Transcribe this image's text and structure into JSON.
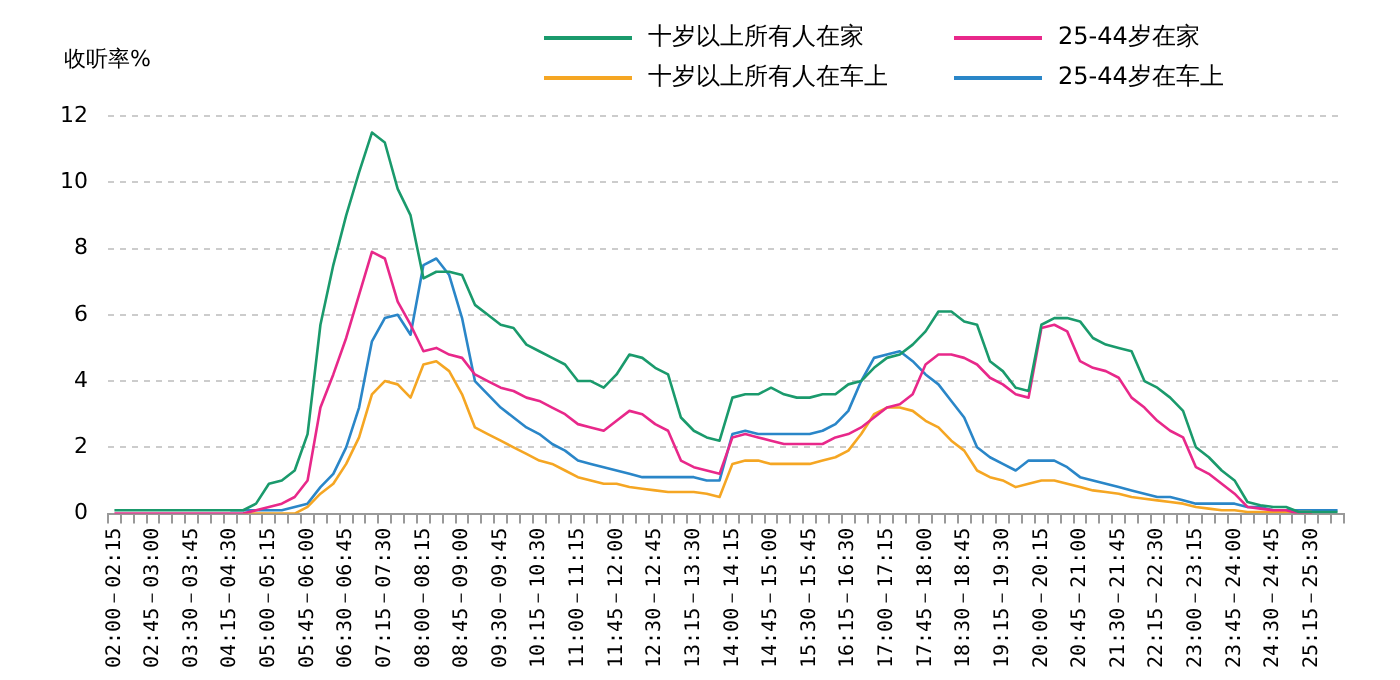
{
  "chart_data": {
    "type": "line",
    "ylabel": "收听率%",
    "legend": "top",
    "grid": "y",
    "ylim": [
      0,
      12
    ],
    "yticks": [
      0,
      2,
      4,
      6,
      8,
      10,
      12
    ],
    "categories": [
      "02:00－02:15",
      null,
      null,
      "02:45－03:00",
      null,
      null,
      "03:30－03:45",
      null,
      null,
      "04:15－04:30",
      null,
      null,
      "05:00－05:15",
      null,
      null,
      "05:45－06:00",
      null,
      null,
      "06:30－06:45",
      null,
      null,
      "07:15－07:30",
      null,
      null,
      "08:00－08:15",
      null,
      null,
      "08:45－09:00",
      null,
      null,
      "09:30－09:45",
      null,
      null,
      "10:15－10:30",
      null,
      null,
      "11:00－11:15",
      null,
      null,
      "11:45－12:00",
      null,
      null,
      "12:30－12:45",
      null,
      null,
      "13:15－13:30",
      null,
      null,
      "14:00－14:15",
      null,
      null,
      "14:45－15:00",
      null,
      null,
      "15:30－15:45",
      null,
      null,
      "16:15－16:30",
      null,
      null,
      "17:00－17:15",
      null,
      null,
      "17:45－18:00",
      null,
      null,
      "18:30－18:45",
      null,
      null,
      "19:15－19:30",
      null,
      null,
      "20:00－20:15",
      null,
      null,
      "20:45－21:00",
      null,
      null,
      "21:30－21:45",
      null,
      null,
      "22:15－22:30",
      null,
      null,
      "23:00－23:15",
      null,
      null,
      "23:45－24:00",
      null,
      null,
      "24:30－24:45",
      null,
      null,
      "25:15－25:30",
      null,
      null
    ],
    "series": [
      {
        "name": "十岁以上所有人在家",
        "color": "#1a9a6c",
        "values": [
          0.1,
          0.1,
          0.1,
          0.1,
          0.1,
          0.1,
          0.1,
          0.1,
          0.1,
          0.1,
          0.1,
          0.3,
          0.9,
          1.0,
          1.3,
          2.4,
          5.7,
          7.5,
          9.0,
          10.3,
          11.5,
          11.2,
          9.8,
          9.0,
          7.1,
          7.3,
          7.3,
          7.2,
          6.3,
          6.0,
          5.7,
          5.6,
          5.1,
          4.9,
          4.7,
          4.5,
          4.0,
          4.0,
          3.8,
          4.2,
          4.8,
          4.7,
          4.4,
          4.2,
          2.9,
          2.5,
          2.3,
          2.2,
          3.5,
          3.6,
          3.6,
          3.8,
          3.6,
          3.5,
          3.5,
          3.6,
          3.6,
          3.9,
          4.0,
          4.4,
          4.7,
          4.8,
          5.1,
          5.5,
          6.1,
          6.1,
          5.8,
          5.7,
          4.6,
          4.3,
          3.8,
          3.7,
          5.7,
          5.9,
          5.9,
          5.8,
          5.3,
          5.1,
          5.0,
          4.9,
          4.0,
          3.8,
          3.5,
          3.1,
          2.0,
          1.7,
          1.3,
          1.0,
          0.35,
          0.25,
          0.2,
          0.2,
          0.05,
          0.05,
          0.05,
          0.05
        ]
      },
      {
        "name": "25-44岁在家",
        "color": "#e8288a",
        "values": [
          0,
          0,
          0,
          0,
          0,
          0,
          0,
          0,
          0,
          0,
          0,
          0.1,
          0.2,
          0.3,
          0.5,
          1.0,
          3.2,
          4.2,
          5.3,
          6.6,
          7.9,
          7.7,
          6.4,
          5.7,
          4.9,
          5.0,
          4.8,
          4.7,
          4.2,
          4.0,
          3.8,
          3.7,
          3.5,
          3.4,
          3.2,
          3.0,
          2.7,
          2.6,
          2.5,
          2.8,
          3.1,
          3.0,
          2.7,
          2.5,
          1.6,
          1.4,
          1.3,
          1.2,
          2.3,
          2.4,
          2.3,
          2.2,
          2.1,
          2.1,
          2.1,
          2.1,
          2.3,
          2.4,
          2.6,
          2.9,
          3.2,
          3.3,
          3.6,
          4.5,
          4.8,
          4.8,
          4.7,
          4.5,
          4.1,
          3.9,
          3.6,
          3.5,
          5.6,
          5.7,
          5.5,
          4.6,
          4.4,
          4.3,
          4.1,
          3.5,
          3.2,
          2.8,
          2.5,
          2.3,
          1.4,
          1.2,
          0.9,
          0.6,
          0.2,
          0.15,
          0.1,
          0.1,
          0,
          0,
          null,
          null
        ]
      },
      {
        "name": "十岁以上所有人在车上",
        "color": "#f5a623",
        "values": [
          null,
          null,
          null,
          null,
          null,
          null,
          null,
          null,
          null,
          null,
          0,
          0,
          0,
          0,
          0,
          0.2,
          0.6,
          0.9,
          1.5,
          2.3,
          3.6,
          4.0,
          3.9,
          3.5,
          4.5,
          4.6,
          4.3,
          3.6,
          2.6,
          2.4,
          2.2,
          2.0,
          1.8,
          1.6,
          1.5,
          1.3,
          1.1,
          1.0,
          0.9,
          0.9,
          0.8,
          0.75,
          0.7,
          0.65,
          0.65,
          0.65,
          0.6,
          0.5,
          1.5,
          1.6,
          1.6,
          1.5,
          1.5,
          1.5,
          1.5,
          1.6,
          1.7,
          1.9,
          2.4,
          3.0,
          3.2,
          3.2,
          3.1,
          2.8,
          2.6,
          2.2,
          1.9,
          1.3,
          1.1,
          1.0,
          0.8,
          0.9,
          1.0,
          1.0,
          0.9,
          0.8,
          0.7,
          0.65,
          0.6,
          0.5,
          0.45,
          0.4,
          0.35,
          0.3,
          0.2,
          0.15,
          0.1,
          0.1,
          0.05,
          0.05,
          0.05,
          0.05,
          0.05,
          0.05,
          null,
          null
        ]
      },
      {
        "name": "25-44岁在车上",
        "color": "#2a86c8",
        "values": [
          null,
          null,
          null,
          null,
          null,
          null,
          null,
          null,
          null,
          0.1,
          0.1,
          0.1,
          0.1,
          0.1,
          0.2,
          0.3,
          0.8,
          1.2,
          2.0,
          3.2,
          5.2,
          5.9,
          6.0,
          5.4,
          7.5,
          7.7,
          7.2,
          5.9,
          4.0,
          3.6,
          3.2,
          2.9,
          2.6,
          2.4,
          2.1,
          1.9,
          1.6,
          1.5,
          1.4,
          1.3,
          1.2,
          1.1,
          1.1,
          1.1,
          1.1,
          1.1,
          1.0,
          1.0,
          2.4,
          2.5,
          2.4,
          2.4,
          2.4,
          2.4,
          2.4,
          2.5,
          2.7,
          3.1,
          4.0,
          4.7,
          4.8,
          4.9,
          4.6,
          4.2,
          3.9,
          3.4,
          2.9,
          2.0,
          1.7,
          1.5,
          1.3,
          1.6,
          1.6,
          1.6,
          1.4,
          1.1,
          1.0,
          0.9,
          0.8,
          0.7,
          0.6,
          0.5,
          0.5,
          0.4,
          0.3,
          0.3,
          0.3,
          0.3,
          0.2,
          0.2,
          0.1,
          0.1,
          0.1,
          0.1,
          0.1,
          0.1
        ]
      }
    ]
  }
}
